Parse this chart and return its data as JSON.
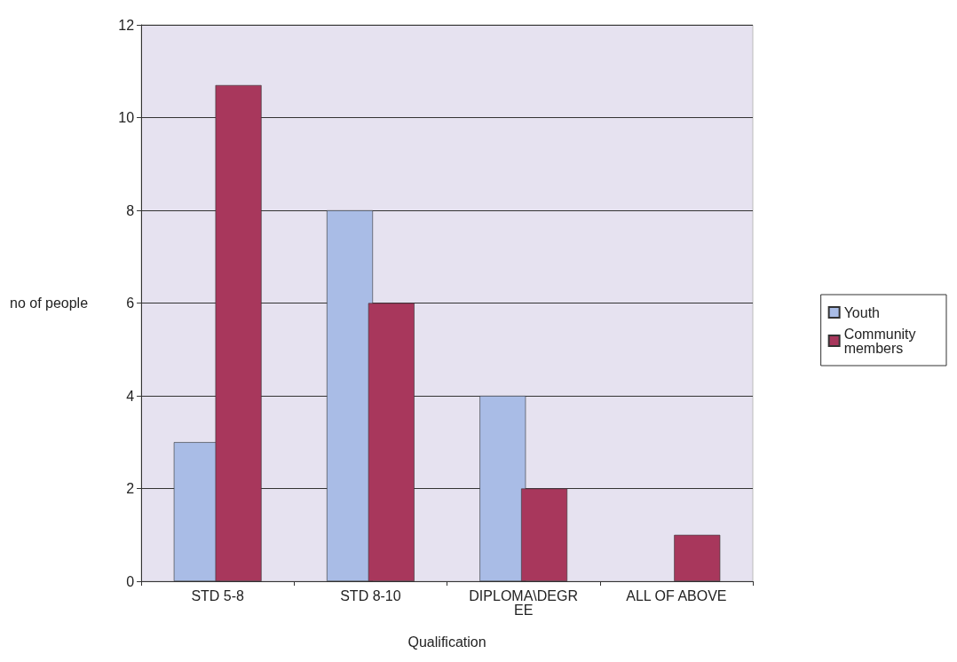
{
  "chart_data": {
    "type": "bar",
    "xlabel": "Qualification",
    "ylabel": "no of people",
    "categories": [
      "STD 5-8",
      "STD 8-10",
      "DIPLOMA\\DEGREE",
      "ALL OF ABOVE"
    ],
    "series": [
      {
        "name": "Youth",
        "color": "#a9bce6",
        "values": [
          3,
          8,
          4,
          null
        ]
      },
      {
        "name": "Community members",
        "color": "#a8375c",
        "values": [
          10.7,
          6,
          2,
          1
        ]
      }
    ],
    "ylim": [
      0,
      12
    ],
    "yticks": [
      0,
      2,
      4,
      6,
      8,
      10,
      12
    ],
    "grid": "y",
    "legend": "right"
  }
}
